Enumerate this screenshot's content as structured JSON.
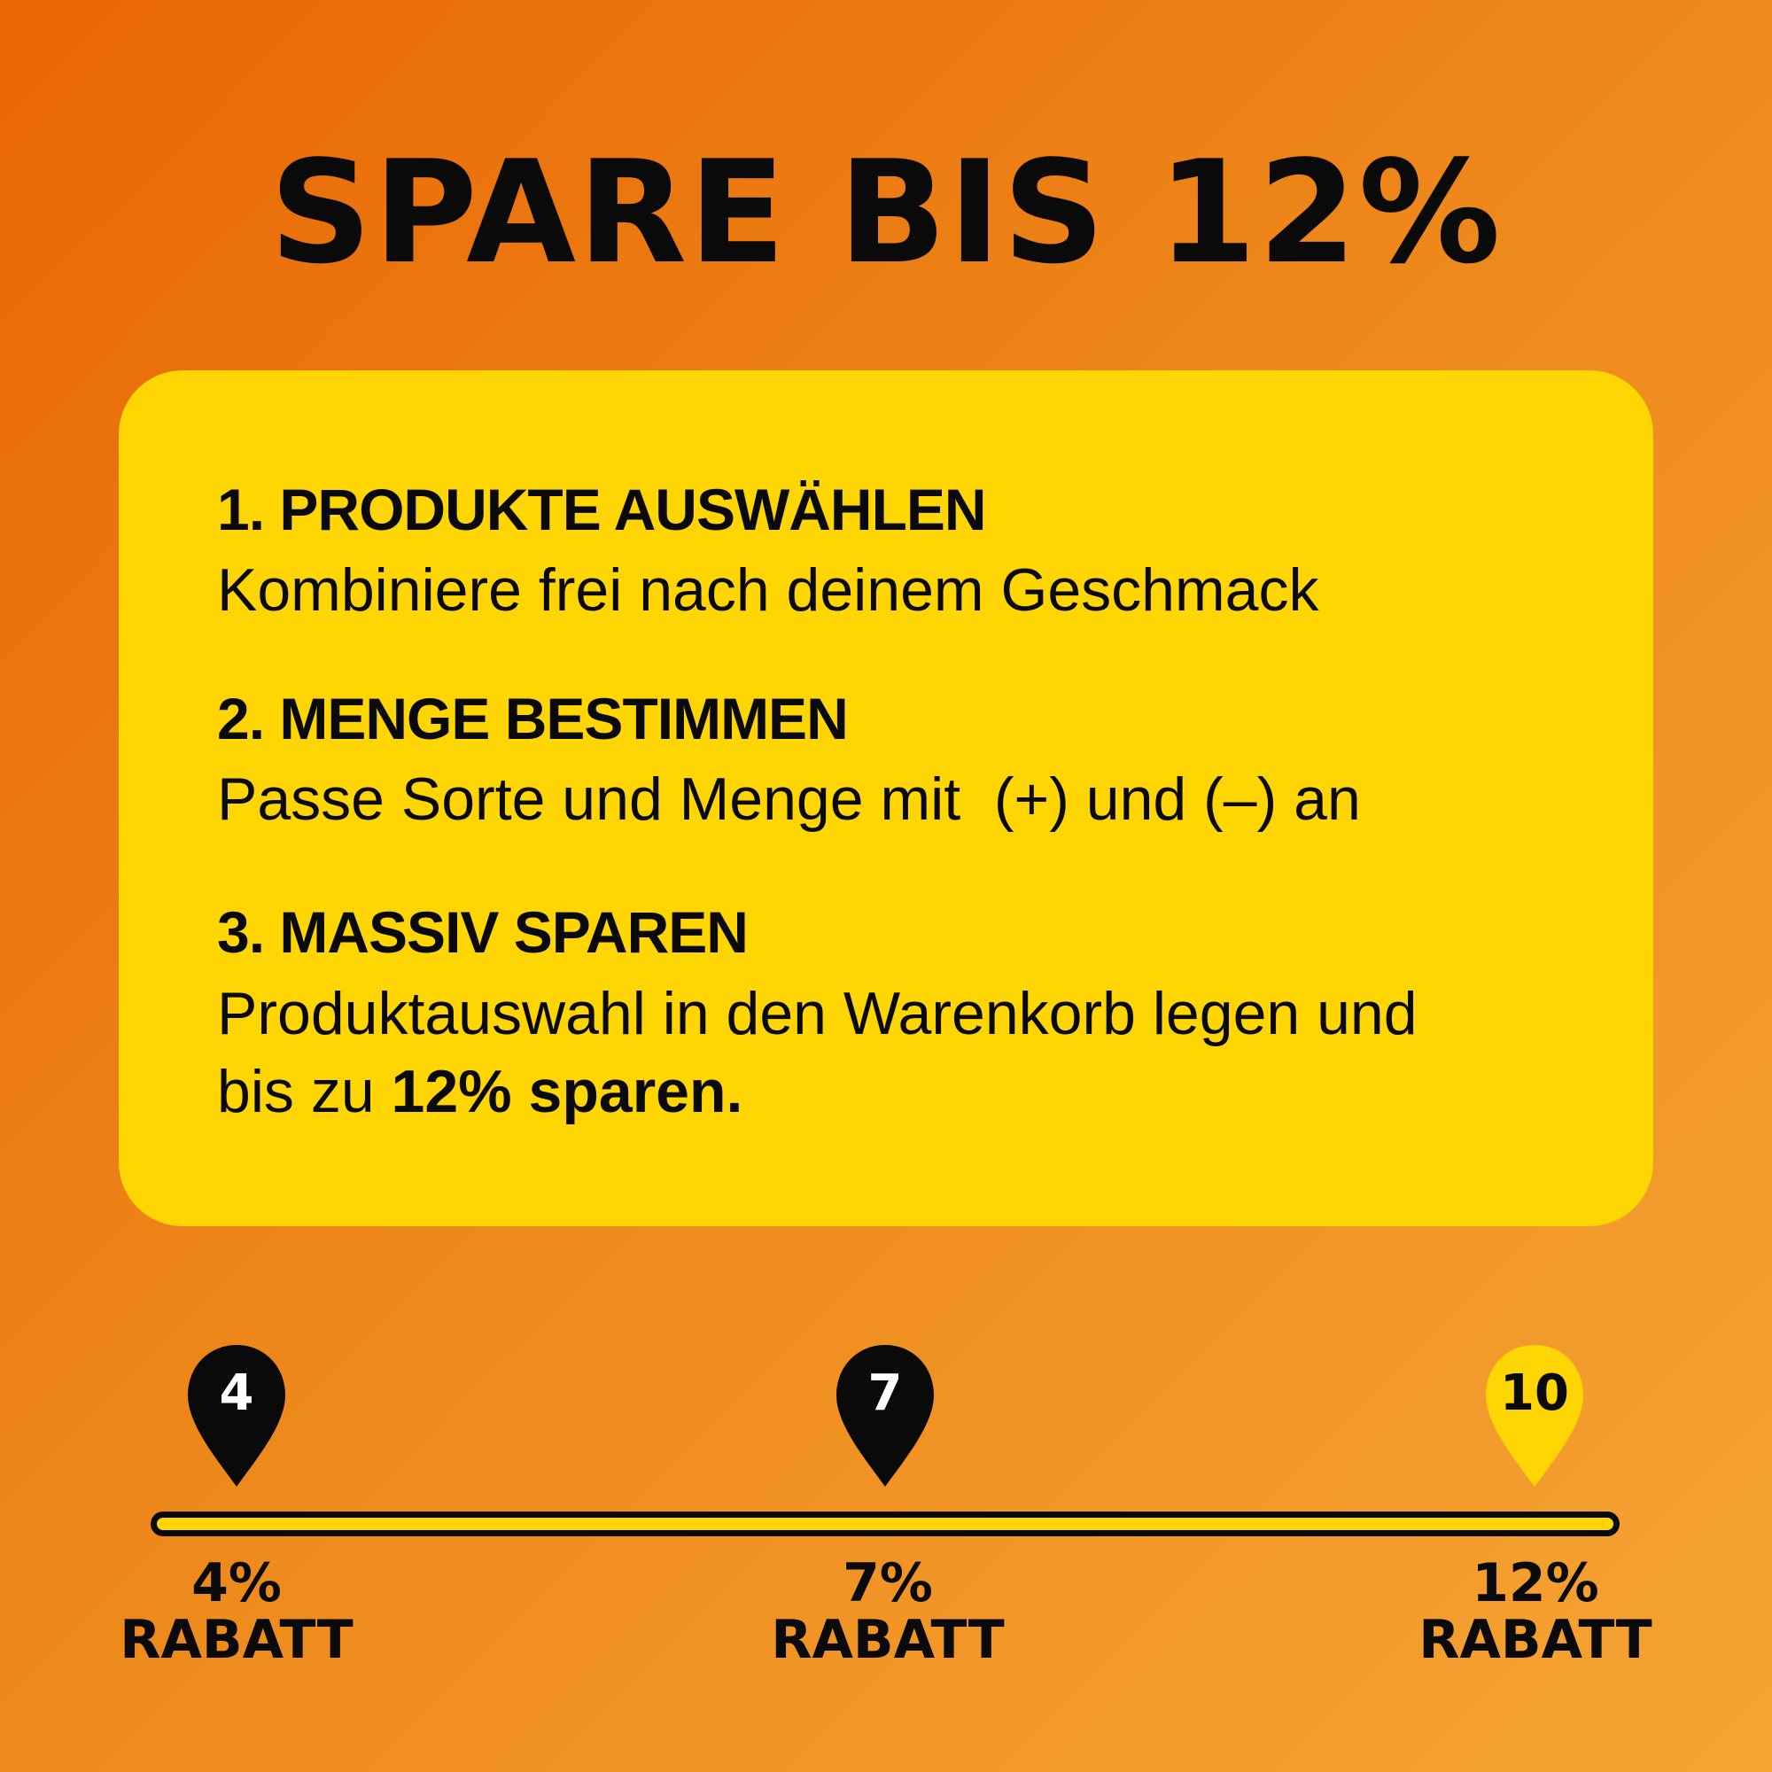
{
  "title": "SPARE BIS 12%",
  "steps": [
    {
      "heading": "1. PRODUKTE AUSWÄHLEN",
      "text": "Kombiniere frei nach deinem Geschmack"
    },
    {
      "heading": "2. MENGE BESTIMMEN",
      "text": "Passe Sorte und Menge mit  (+) und (–) an"
    },
    {
      "heading": "3. MASSIV SPAREN",
      "text": "Produktauswahl in den Warenkorb legen und",
      "text2_plain": "bis zu ",
      "text2_bold": "12% sparen."
    }
  ],
  "timeline": {
    "milestones": [
      {
        "count": "4",
        "percent": "4%",
        "label": "RABATT",
        "pin_color": "#0a0a0a",
        "text_color": "#ffffff"
      },
      {
        "count": "7",
        "percent": "7%",
        "label": "RABATT",
        "pin_color": "#0a0a0a",
        "text_color": "#ffffff"
      },
      {
        "count": "10",
        "percent": "12%",
        "label": "RABATT",
        "pin_color": "#ffd503",
        "text_color": "#0a0a0a"
      }
    ]
  },
  "colors": {
    "background_start": "#e96604",
    "background_end": "#f5a434",
    "card": "#ffd503",
    "text": "#0a0a0a"
  }
}
